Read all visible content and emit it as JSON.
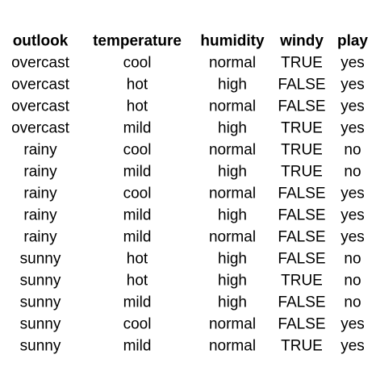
{
  "table": {
    "header": [
      "outlook",
      "temperature",
      "humidity",
      "windy",
      "play"
    ],
    "rows": [
      [
        "overcast",
        "cool",
        "normal",
        "TRUE",
        "yes"
      ],
      [
        "overcast",
        "hot",
        "high",
        "FALSE",
        "yes"
      ],
      [
        "overcast",
        "hot",
        "normal",
        "FALSE",
        "yes"
      ],
      [
        "overcast",
        "mild",
        "high",
        "TRUE",
        "yes"
      ],
      [
        "rainy",
        "cool",
        "normal",
        "TRUE",
        "no"
      ],
      [
        "rainy",
        "mild",
        "high",
        "TRUE",
        "no"
      ],
      [
        "rainy",
        "cool",
        "normal",
        "FALSE",
        "yes"
      ],
      [
        "rainy",
        "mild",
        "high",
        "FALSE",
        "yes"
      ],
      [
        "rainy",
        "mild",
        "normal",
        "FALSE",
        "yes"
      ],
      [
        "sunny",
        "hot",
        "high",
        "FALSE",
        "no"
      ],
      [
        "sunny",
        "hot",
        "high",
        "TRUE",
        "no"
      ],
      [
        "sunny",
        "mild",
        "high",
        "FALSE",
        "no"
      ],
      [
        "sunny",
        "cool",
        "normal",
        "FALSE",
        "yes"
      ],
      [
        "sunny",
        "mild",
        "normal",
        "TRUE",
        "yes"
      ]
    ]
  }
}
